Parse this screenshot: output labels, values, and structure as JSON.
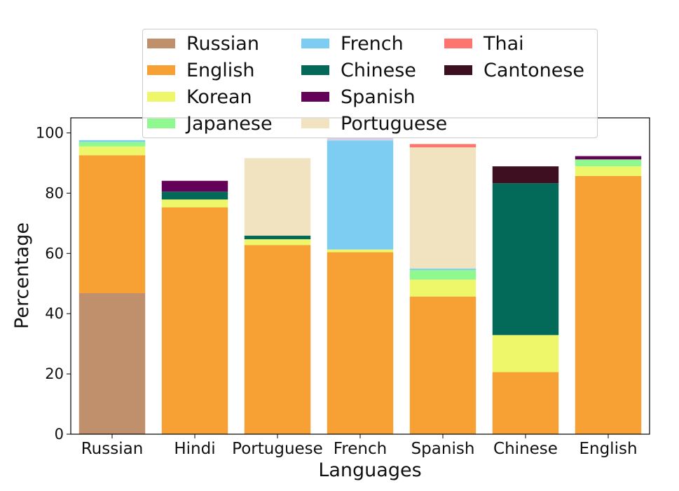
{
  "chart_data": {
    "type": "bar",
    "stacked": true,
    "xlabel": "Languages",
    "ylabel": "Percentage",
    "ylim": [
      0,
      105
    ],
    "yticks": [
      0,
      20,
      40,
      60,
      80,
      100
    ],
    "grid": false,
    "legend_position": "top-center",
    "categories": [
      "Russian",
      "Hindi",
      "Portuguese",
      "French",
      "Spanish",
      "Chinese",
      "English"
    ],
    "series": [
      {
        "name": "Russian",
        "color": "#c08f6c",
        "values": [
          46.8,
          0,
          0,
          0,
          0,
          0,
          0
        ]
      },
      {
        "name": "English",
        "color": "#f7a034",
        "values": [
          45.8,
          75.3,
          62.8,
          60.4,
          45.7,
          20.6,
          85.7
        ]
      },
      {
        "name": "Korean",
        "color": "#eef76a",
        "values": [
          2.9,
          2.6,
          1.9,
          0.9,
          5.6,
          12.3,
          3.2
        ]
      },
      {
        "name": "Japanese",
        "color": "#8ff98f",
        "values": [
          1.5,
          0,
          0,
          0,
          3.2,
          0,
          2.3
        ]
      },
      {
        "name": "French",
        "color": "#7dcdf3",
        "values": [
          0.6,
          0,
          0,
          36.2,
          0.5,
          0,
          0
        ]
      },
      {
        "name": "Chinese",
        "color": "#036a59",
        "values": [
          0,
          2.6,
          1.2,
          0,
          0,
          50.4,
          0
        ]
      },
      {
        "name": "Spanish",
        "color": "#640259",
        "values": [
          0,
          3.6,
          0,
          0,
          0,
          0,
          1.1
        ]
      },
      {
        "name": "Portuguese",
        "color": "#f1e3bf",
        "values": [
          0,
          0,
          25.7,
          0,
          40.2,
          0,
          0
        ]
      },
      {
        "name": "Thai",
        "color": "#fe7570",
        "values": [
          0,
          0,
          0,
          0,
          1.1,
          0,
          0
        ]
      },
      {
        "name": "Cantonese",
        "color": "#3e0f20",
        "values": [
          0,
          0,
          0,
          0,
          0,
          5.6,
          0
        ]
      },
      {
        "name": "",
        "color": "#d7d0e6",
        "values": [
          0,
          0,
          0,
          1.0,
          0,
          0,
          0
        ]
      }
    ]
  }
}
